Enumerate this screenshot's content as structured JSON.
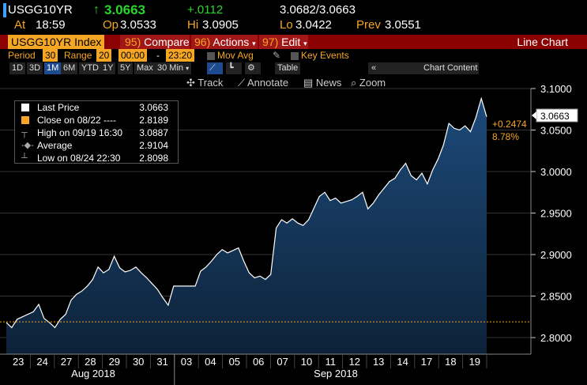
{
  "quote": {
    "ticker": "USGG10YR",
    "last": "3.0663",
    "change": "+.0112",
    "bid_ask": "3.0682/3.0663",
    "at_label": "At",
    "at_time": "18:59",
    "op_label": "Op",
    "op_value": "3.0533",
    "hi_label": "Hi",
    "hi_value": "3.0905",
    "lo_label": "Lo",
    "lo_value": "3.0422",
    "prev_label": "Prev",
    "prev_value": "3.0551",
    "up_arrow": "↑"
  },
  "menu": {
    "index_name": "USGG10YR Index",
    "compare_num": "95)",
    "compare": "Compare",
    "actions_num": "96)",
    "actions": "Actions",
    "edit_num": "97)",
    "edit": "Edit",
    "chart_type": "Line Chart"
  },
  "period": {
    "period_label": "Period",
    "period_value": "30",
    "range_label": "Range",
    "range_value": "20",
    "start_time": "00:00",
    "dash": "-",
    "end_time": "23:20",
    "mov_avg": "Mov Avg",
    "key_events": "Key Events"
  },
  "ranges": {
    "buttons": [
      "1D",
      "3D",
      "1M",
      "6M",
      "YTD",
      "1Y",
      "5Y",
      "Max"
    ],
    "active": "1M",
    "interval": "30 Min",
    "table": "Table",
    "chart_content": "Chart Content"
  },
  "tools": {
    "track": "Track",
    "annotate": "Annotate",
    "news": "News",
    "zoom": "Zoom"
  },
  "legend": {
    "rows": [
      {
        "name": "Last Price",
        "value": "3.0663"
      },
      {
        "name": "Close on 08/22 ----",
        "value": "2.8189"
      },
      {
        "name": "High on 09/19 16:30",
        "value": "3.0887"
      },
      {
        "name": "Average",
        "value": "2.9104"
      },
      {
        "name": "Low on 08/24 22:30",
        "value": "2.8098"
      }
    ]
  },
  "annotations": {
    "last_tag": "3.0663",
    "change_abs": "+0.2474",
    "change_pct": "8.78%"
  },
  "colors": {
    "accent_amber": "#f5a623",
    "line": "#ffffff",
    "area_top": "#1d4a7a",
    "area_bottom": "#0d2238",
    "menu_red": "#8b0000"
  },
  "chart_data": {
    "type": "area",
    "ylim": [
      2.8,
      3.1
    ],
    "y_ticks": [
      "3.1000",
      "3.0500",
      "3.0000",
      "2.9500",
      "2.9000",
      "2.8500",
      "2.8000"
    ],
    "x_ticks": [
      "23",
      "24",
      "27",
      "28",
      "29",
      "30",
      "31",
      "03",
      "04",
      "05",
      "06",
      "07",
      "10",
      "11",
      "12",
      "13",
      "14",
      "17",
      "18",
      "19"
    ],
    "month_labels": [
      "Aug 2018",
      "Sep 2018"
    ],
    "reference_line": 2.8189,
    "series": [
      {
        "values": [
          2.818,
          2.812,
          2.822,
          2.825,
          2.828,
          2.831,
          2.84,
          2.823,
          2.818,
          2.812,
          2.822,
          2.828,
          2.845,
          2.852,
          2.856,
          2.862,
          2.87,
          2.885,
          2.878,
          2.882,
          2.898,
          2.884,
          2.879,
          2.881,
          2.885,
          2.878,
          2.872,
          2.865,
          2.858,
          2.848,
          2.839,
          2.862,
          2.862,
          2.862,
          2.862,
          2.862,
          2.88,
          2.885,
          2.892,
          2.9,
          2.906,
          2.902,
          2.905,
          2.908,
          2.892,
          2.878,
          2.872,
          2.874,
          2.87,
          2.876,
          2.932,
          2.942,
          2.938,
          2.943,
          2.938,
          2.935,
          2.942,
          2.956,
          2.97,
          2.975,
          2.965,
          2.968,
          2.962,
          2.964,
          2.966,
          2.97,
          2.975,
          2.955,
          2.962,
          2.972,
          2.98,
          2.988,
          2.992,
          3.002,
          3.01,
          2.995,
          2.99,
          2.998,
          2.985,
          3.002,
          3.015,
          3.032,
          3.058,
          3.052,
          3.05,
          3.055,
          3.048,
          3.065,
          3.088,
          3.066
        ]
      }
    ]
  }
}
